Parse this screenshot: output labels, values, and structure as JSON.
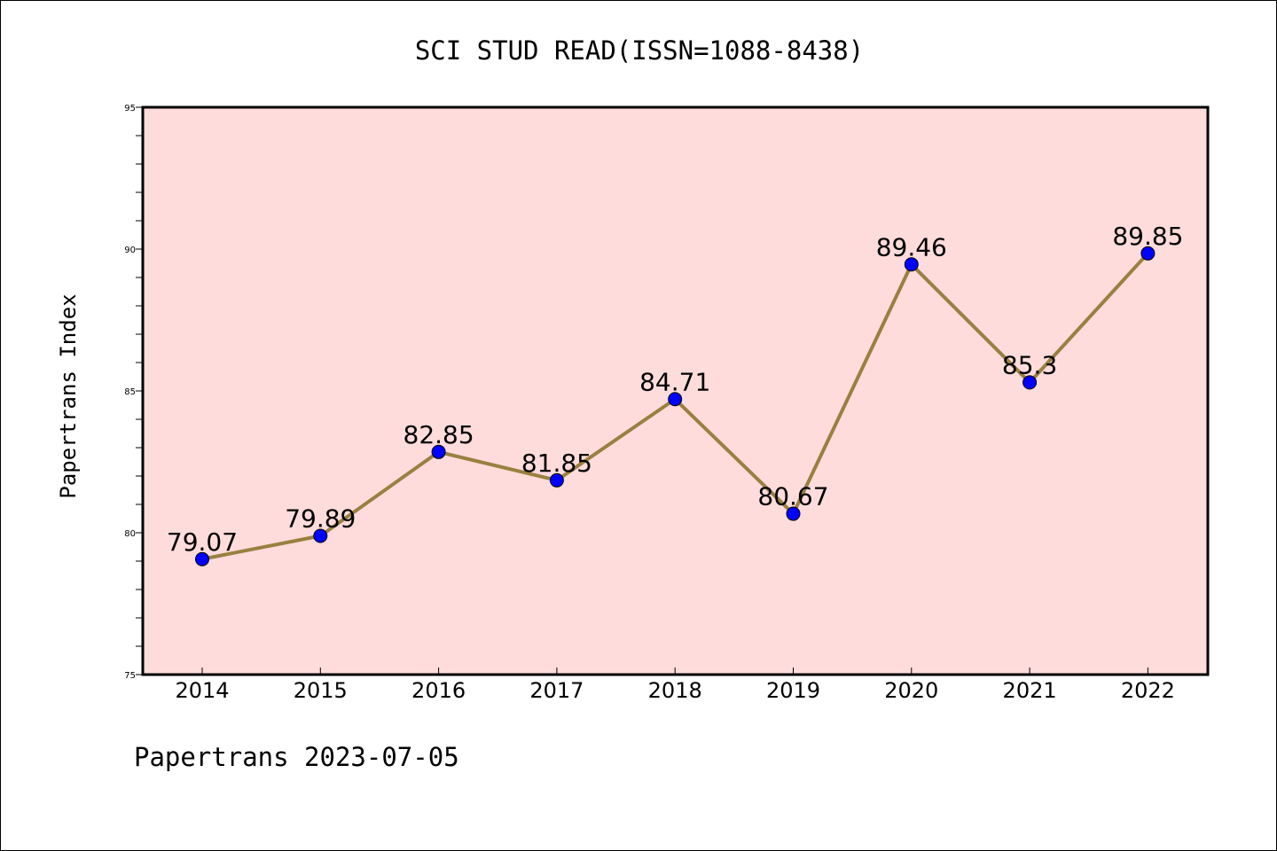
{
  "chart_data": {
    "type": "line",
    "title": "SCI STUD READ(ISSN=1088-8438)",
    "ylabel": "Papertrans Index",
    "xlabel": "",
    "footer": "Papertrans 2023-07-05",
    "categories": [
      "2014",
      "2015",
      "2016",
      "2017",
      "2018",
      "2019",
      "2020",
      "2021",
      "2022"
    ],
    "series": [
      {
        "values": [
          79.07,
          79.89,
          82.85,
          81.85,
          84.71,
          80.67,
          89.46,
          85.3,
          89.85
        ],
        "labels": [
          "79.07",
          "79.89",
          "82.85",
          "81.85",
          "84.71",
          "80.67",
          "89.46",
          "85.3",
          "89.85"
        ]
      }
    ],
    "ylim": [
      75,
      95
    ],
    "yticks": [
      "75",
      "80",
      "85",
      "90",
      "95"
    ],
    "grid": false,
    "colors": {
      "plot_background": "#ffdcdc",
      "line": "#9a8040",
      "marker": "#0000ff"
    }
  }
}
